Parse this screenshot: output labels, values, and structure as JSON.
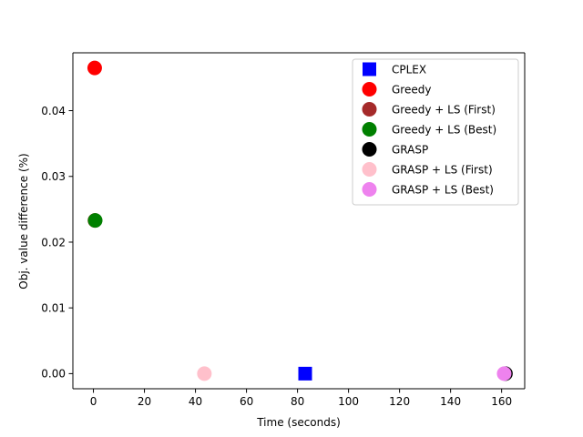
{
  "chart_data": {
    "type": "scatter",
    "title": "",
    "xlabel": "Time (seconds)",
    "ylabel": "Obj. value difference (%)",
    "xlim": [
      -8.05,
      169.05
    ],
    "ylim": [
      -0.0023,
      0.0488
    ],
    "xticks": [
      0,
      20,
      40,
      60,
      80,
      100,
      120,
      140,
      160
    ],
    "yticks": [
      0.0,
      0.01,
      0.02,
      0.03,
      0.04
    ],
    "ytick_labels": [
      "0.00",
      "0.01",
      "0.02",
      "0.03",
      "0.04"
    ],
    "grid": false,
    "legend_position": "top-right",
    "series": [
      {
        "name": "CPLEX",
        "marker": "square",
        "color": "#0000ff",
        "points": [
          {
            "x": 83,
            "y": 0.0
          }
        ]
      },
      {
        "name": "Greedy",
        "marker": "circle",
        "color": "#ff0000",
        "points": [
          {
            "x": 0.5,
            "y": 0.0465
          }
        ]
      },
      {
        "name": "Greedy + LS (First)",
        "marker": "circle",
        "color": "#a52a2a",
        "points": [
          {
            "x": 0.6,
            "y": 0.0233
          }
        ]
      },
      {
        "name": "Greedy + LS (Best)",
        "marker": "circle",
        "color": "#008000",
        "points": [
          {
            "x": 0.7,
            "y": 0.0233
          }
        ]
      },
      {
        "name": "GRASP",
        "marker": "circle",
        "color": "#000000",
        "points": [
          {
            "x": 161.5,
            "y": 0.0
          }
        ]
      },
      {
        "name": "GRASP + LS (First)",
        "marker": "circle",
        "color": "#ffc0cb",
        "points": [
          {
            "x": 43.5,
            "y": 0.0
          }
        ]
      },
      {
        "name": "GRASP + LS (Best)",
        "marker": "circle",
        "color": "#ee82ee",
        "points": [
          {
            "x": 161,
            "y": 0.0
          }
        ]
      }
    ]
  }
}
